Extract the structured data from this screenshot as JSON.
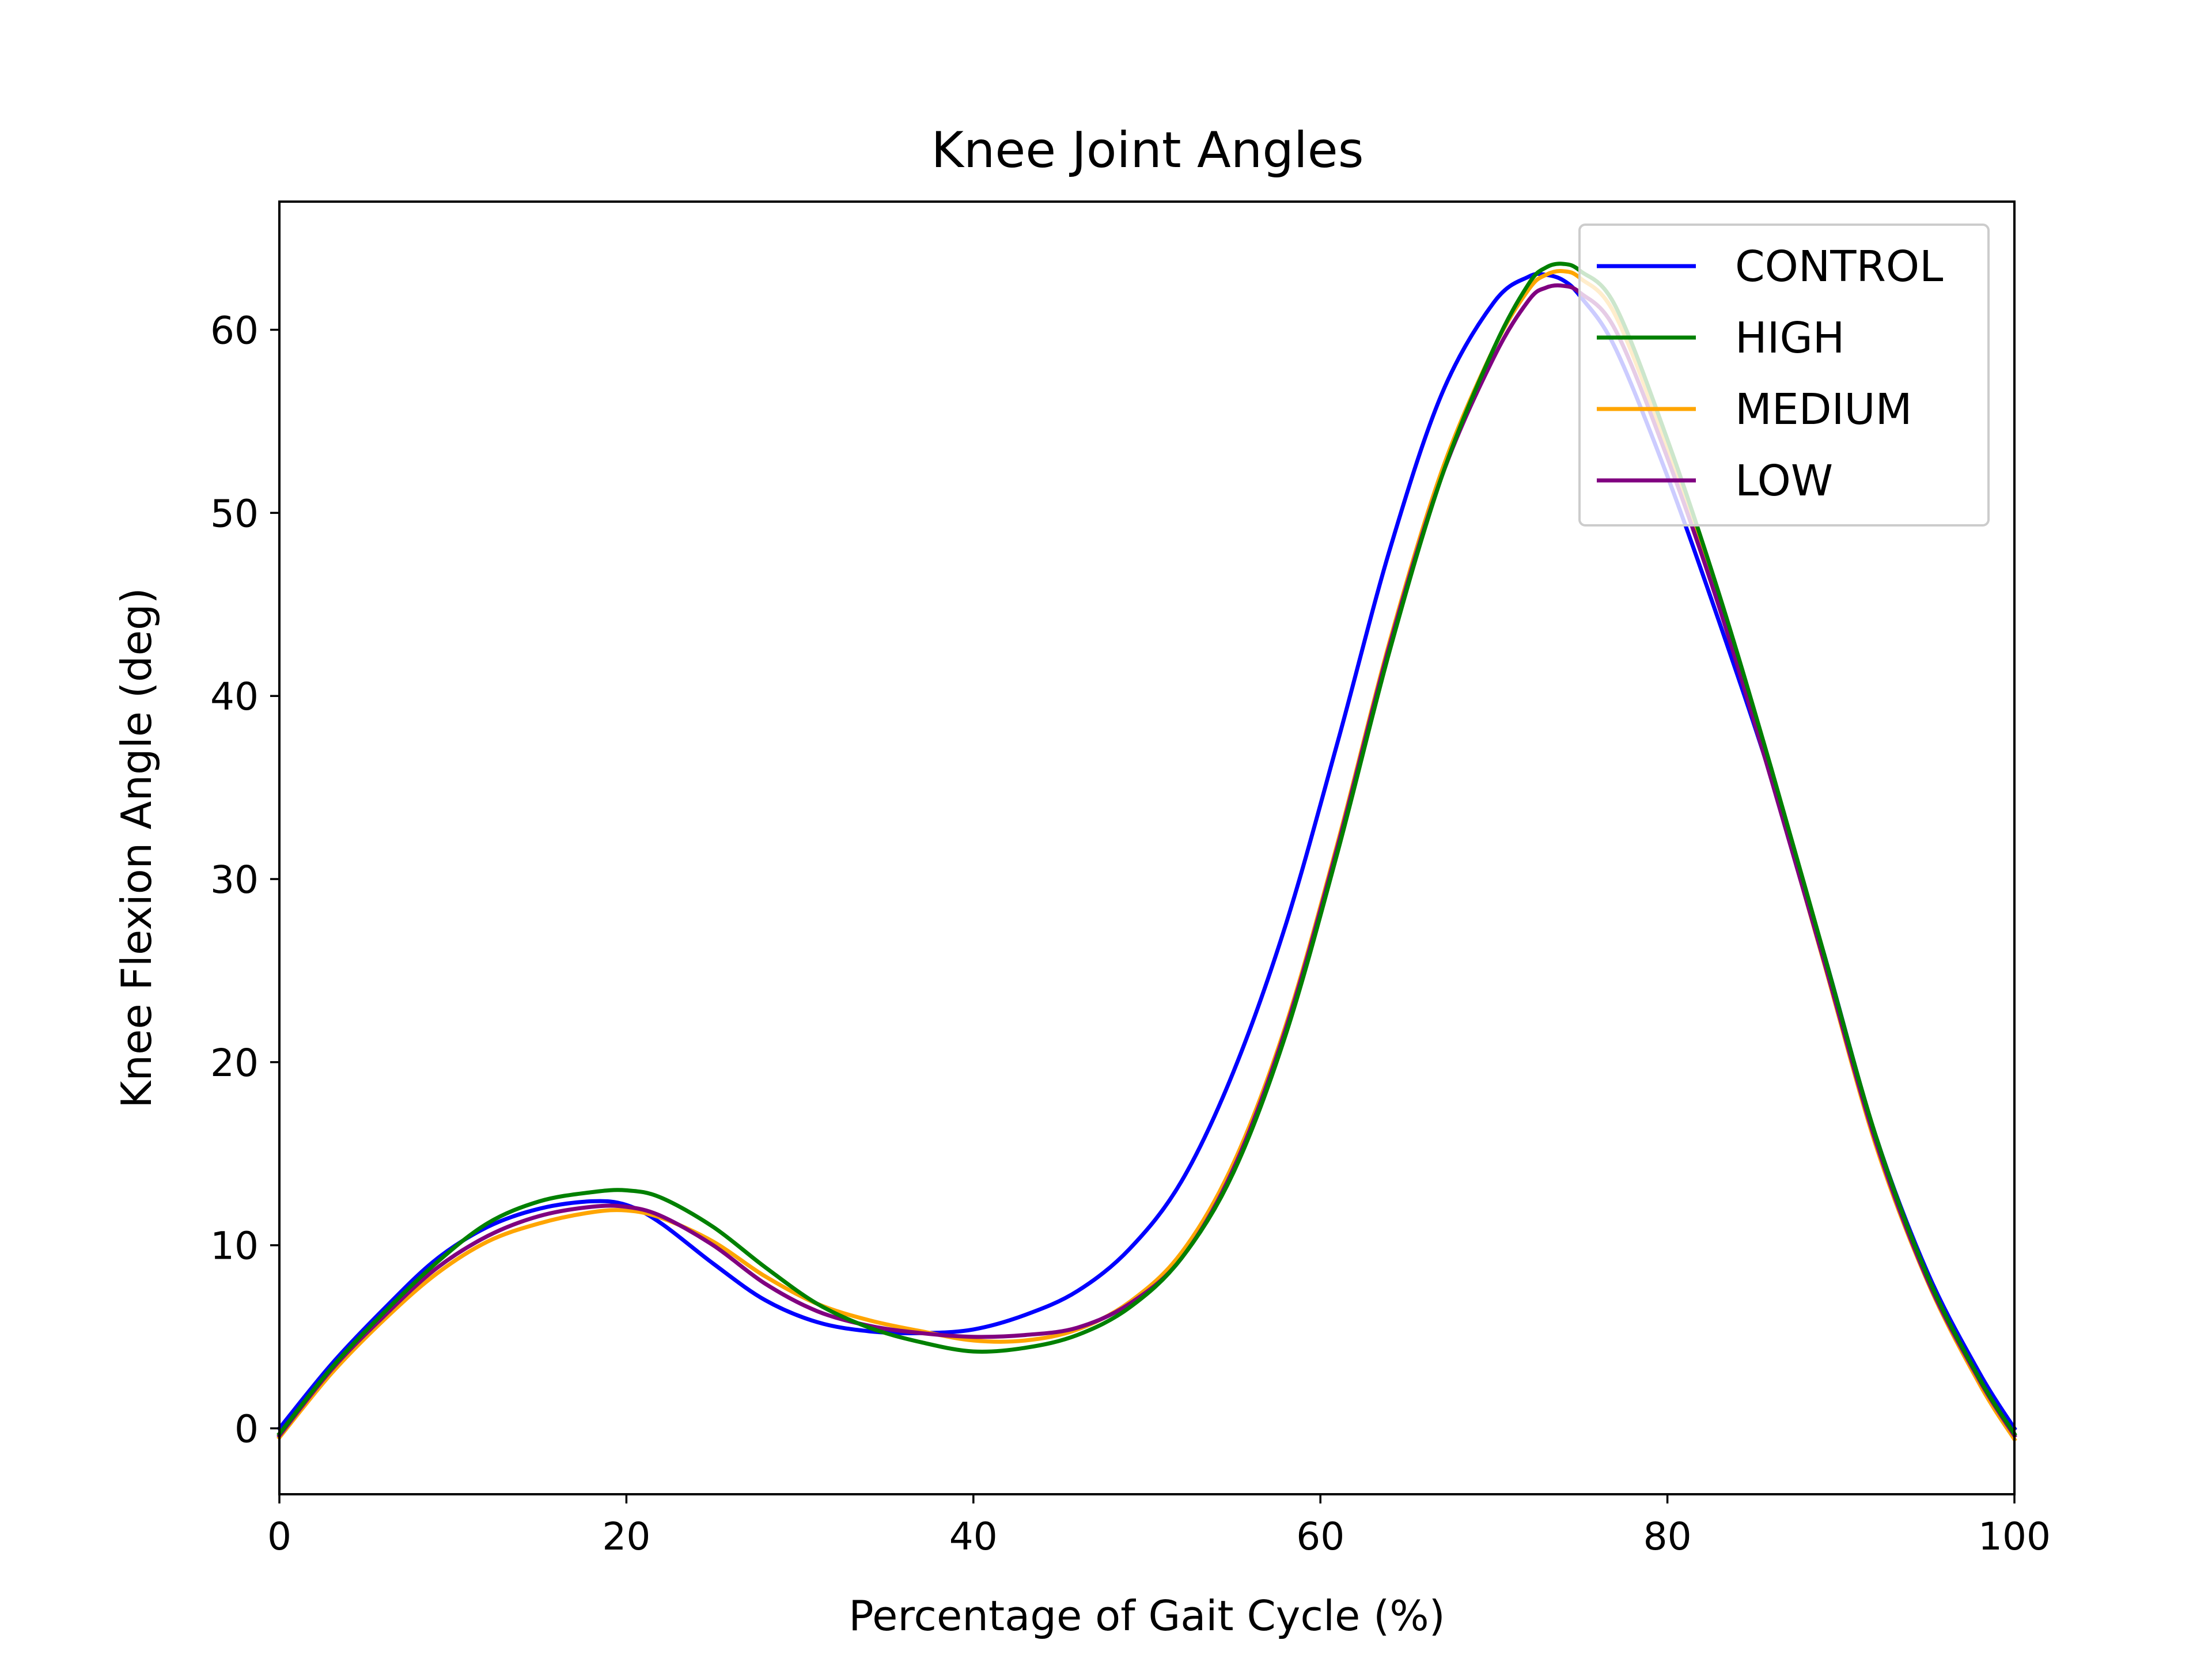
{
  "chart_data": {
    "type": "line",
    "title": "Knee Joint Angles",
    "xlabel": "Percentage of Gait Cycle (%)",
    "ylabel": "Knee Flexion Angle (deg)",
    "xlim": [
      0,
      100
    ],
    "ylim": [
      -3.6,
      67
    ],
    "xticks": [
      0,
      20,
      40,
      60,
      80,
      100
    ],
    "yticks": [
      0,
      10,
      20,
      30,
      40,
      50,
      60
    ],
    "grid": false,
    "legend_position": "top-right",
    "x": [
      0,
      3,
      6,
      9,
      12,
      15,
      18,
      20,
      22,
      25,
      28,
      31,
      34,
      37,
      40,
      43,
      46,
      49,
      52,
      55,
      58,
      61,
      64,
      67,
      70,
      72,
      73,
      74,
      75,
      77,
      80,
      83,
      86,
      89,
      92,
      95,
      98,
      100
    ],
    "series": [
      {
        "name": "CONTROL",
        "color": "#0000ff",
        "values": [
          0,
          3.5,
          6.5,
          9.2,
          11.0,
          12.0,
          12.4,
          12.2,
          11.2,
          9.0,
          7.0,
          5.8,
          5.3,
          5.2,
          5.4,
          6.2,
          7.5,
          9.8,
          13.5,
          19.5,
          27.5,
          37.5,
          48.0,
          56.5,
          61.5,
          62.9,
          63.0,
          62.7,
          61.8,
          59.0,
          52.0,
          44.0,
          35.5,
          26.0,
          16.0,
          8.5,
          3.0,
          0
        ]
      },
      {
        "name": "HIGH",
        "color": "#008000",
        "values": [
          -0.3,
          3.3,
          6.3,
          9.0,
          11.2,
          12.4,
          12.9,
          13.0,
          12.6,
          11.0,
          8.8,
          6.8,
          5.5,
          4.7,
          4.2,
          4.4,
          5.1,
          6.6,
          9.3,
          14.0,
          21.5,
          31.5,
          42.5,
          52.0,
          59.0,
          62.5,
          63.4,
          63.6,
          63.2,
          61.3,
          54.0,
          45.5,
          36.0,
          26.0,
          16.0,
          8.3,
          2.7,
          -0.3
        ]
      },
      {
        "name": "MEDIUM",
        "color": "#ffa500",
        "values": [
          -0.5,
          3.0,
          5.9,
          8.4,
          10.2,
          11.2,
          11.8,
          11.9,
          11.5,
          10.2,
          8.3,
          6.8,
          5.9,
          5.3,
          4.8,
          4.8,
          5.4,
          6.9,
          9.6,
          14.5,
          22.0,
          32.0,
          43.0,
          52.3,
          59.0,
          62.2,
          63.0,
          63.2,
          62.8,
          60.8,
          53.5,
          45.0,
          35.5,
          25.5,
          15.5,
          8.0,
          2.4,
          -0.6
        ]
      },
      {
        "name": "LOW",
        "color": "#800080",
        "values": [
          -0.4,
          3.2,
          6.1,
          8.7,
          10.5,
          11.6,
          12.1,
          12.1,
          11.6,
          10.0,
          7.9,
          6.4,
          5.6,
          5.2,
          5.0,
          5.1,
          5.5,
          6.8,
          9.3,
          14.2,
          21.8,
          31.8,
          42.8,
          52.0,
          58.5,
          61.6,
          62.3,
          62.4,
          62.0,
          60.0,
          53.0,
          44.8,
          35.4,
          25.6,
          15.7,
          8.1,
          2.6,
          -0.4
        ]
      }
    ]
  }
}
